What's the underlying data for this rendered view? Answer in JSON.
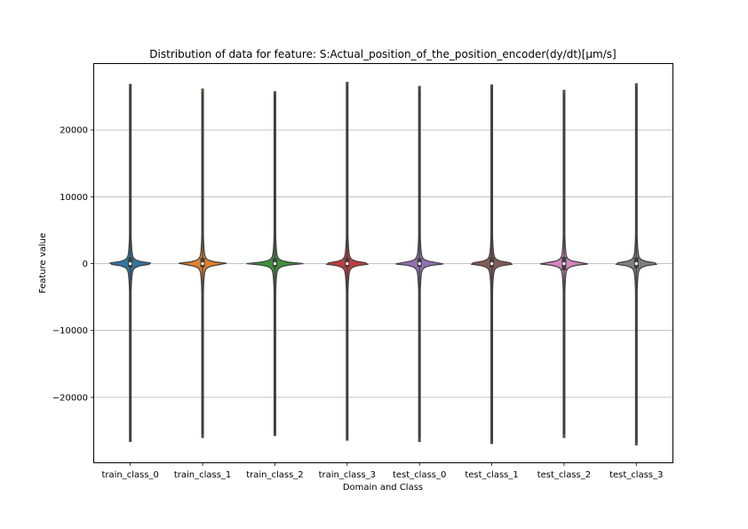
{
  "chart_data": {
    "type": "violin",
    "title": "Distribution of data for feature: S:Actual_position_of_the_position_encoder(dy/dt)[µm/s]",
    "xlabel": "Domain and Class",
    "ylabel": "Feature value",
    "ylim": [
      -29800,
      29800
    ],
    "yticks": [
      -20000,
      -10000,
      0,
      10000,
      20000
    ],
    "ytick_labels": [
      "−20000",
      "−10000",
      "0",
      "10000",
      "20000"
    ],
    "grid": "y",
    "categories": [
      "train_class_0",
      "train_class_1",
      "train_class_2",
      "train_class_3",
      "test_class_0",
      "test_class_1",
      "test_class_2",
      "test_class_3"
    ],
    "colors": [
      "#3274a1",
      "#e1812c",
      "#3a923a",
      "#c03d3e",
      "#9372b2",
      "#845b53",
      "#d684bd",
      "#7f7f7f"
    ],
    "series": [
      {
        "min": -26600,
        "max": 26800,
        "q1": -600,
        "median": 0,
        "q3": 900
      },
      {
        "min": -26000,
        "max": 26100,
        "q1": -550,
        "median": 0,
        "q3": 850
      },
      {
        "min": -25700,
        "max": 25700,
        "q1": -500,
        "median": 0,
        "q3": 800
      },
      {
        "min": -26400,
        "max": 27100,
        "q1": -550,
        "median": 0,
        "q3": 850
      },
      {
        "min": -26600,
        "max": 26500,
        "q1": -500,
        "median": 0,
        "q3": 800
      },
      {
        "min": -26900,
        "max": 26700,
        "q1": -600,
        "median": 0,
        "q3": 900
      },
      {
        "min": -26000,
        "max": 25900,
        "q1": -1000,
        "median": 0,
        "q3": 1000
      },
      {
        "min": -27100,
        "max": 26900,
        "q1": -700,
        "median": 0,
        "q3": 900
      }
    ]
  }
}
